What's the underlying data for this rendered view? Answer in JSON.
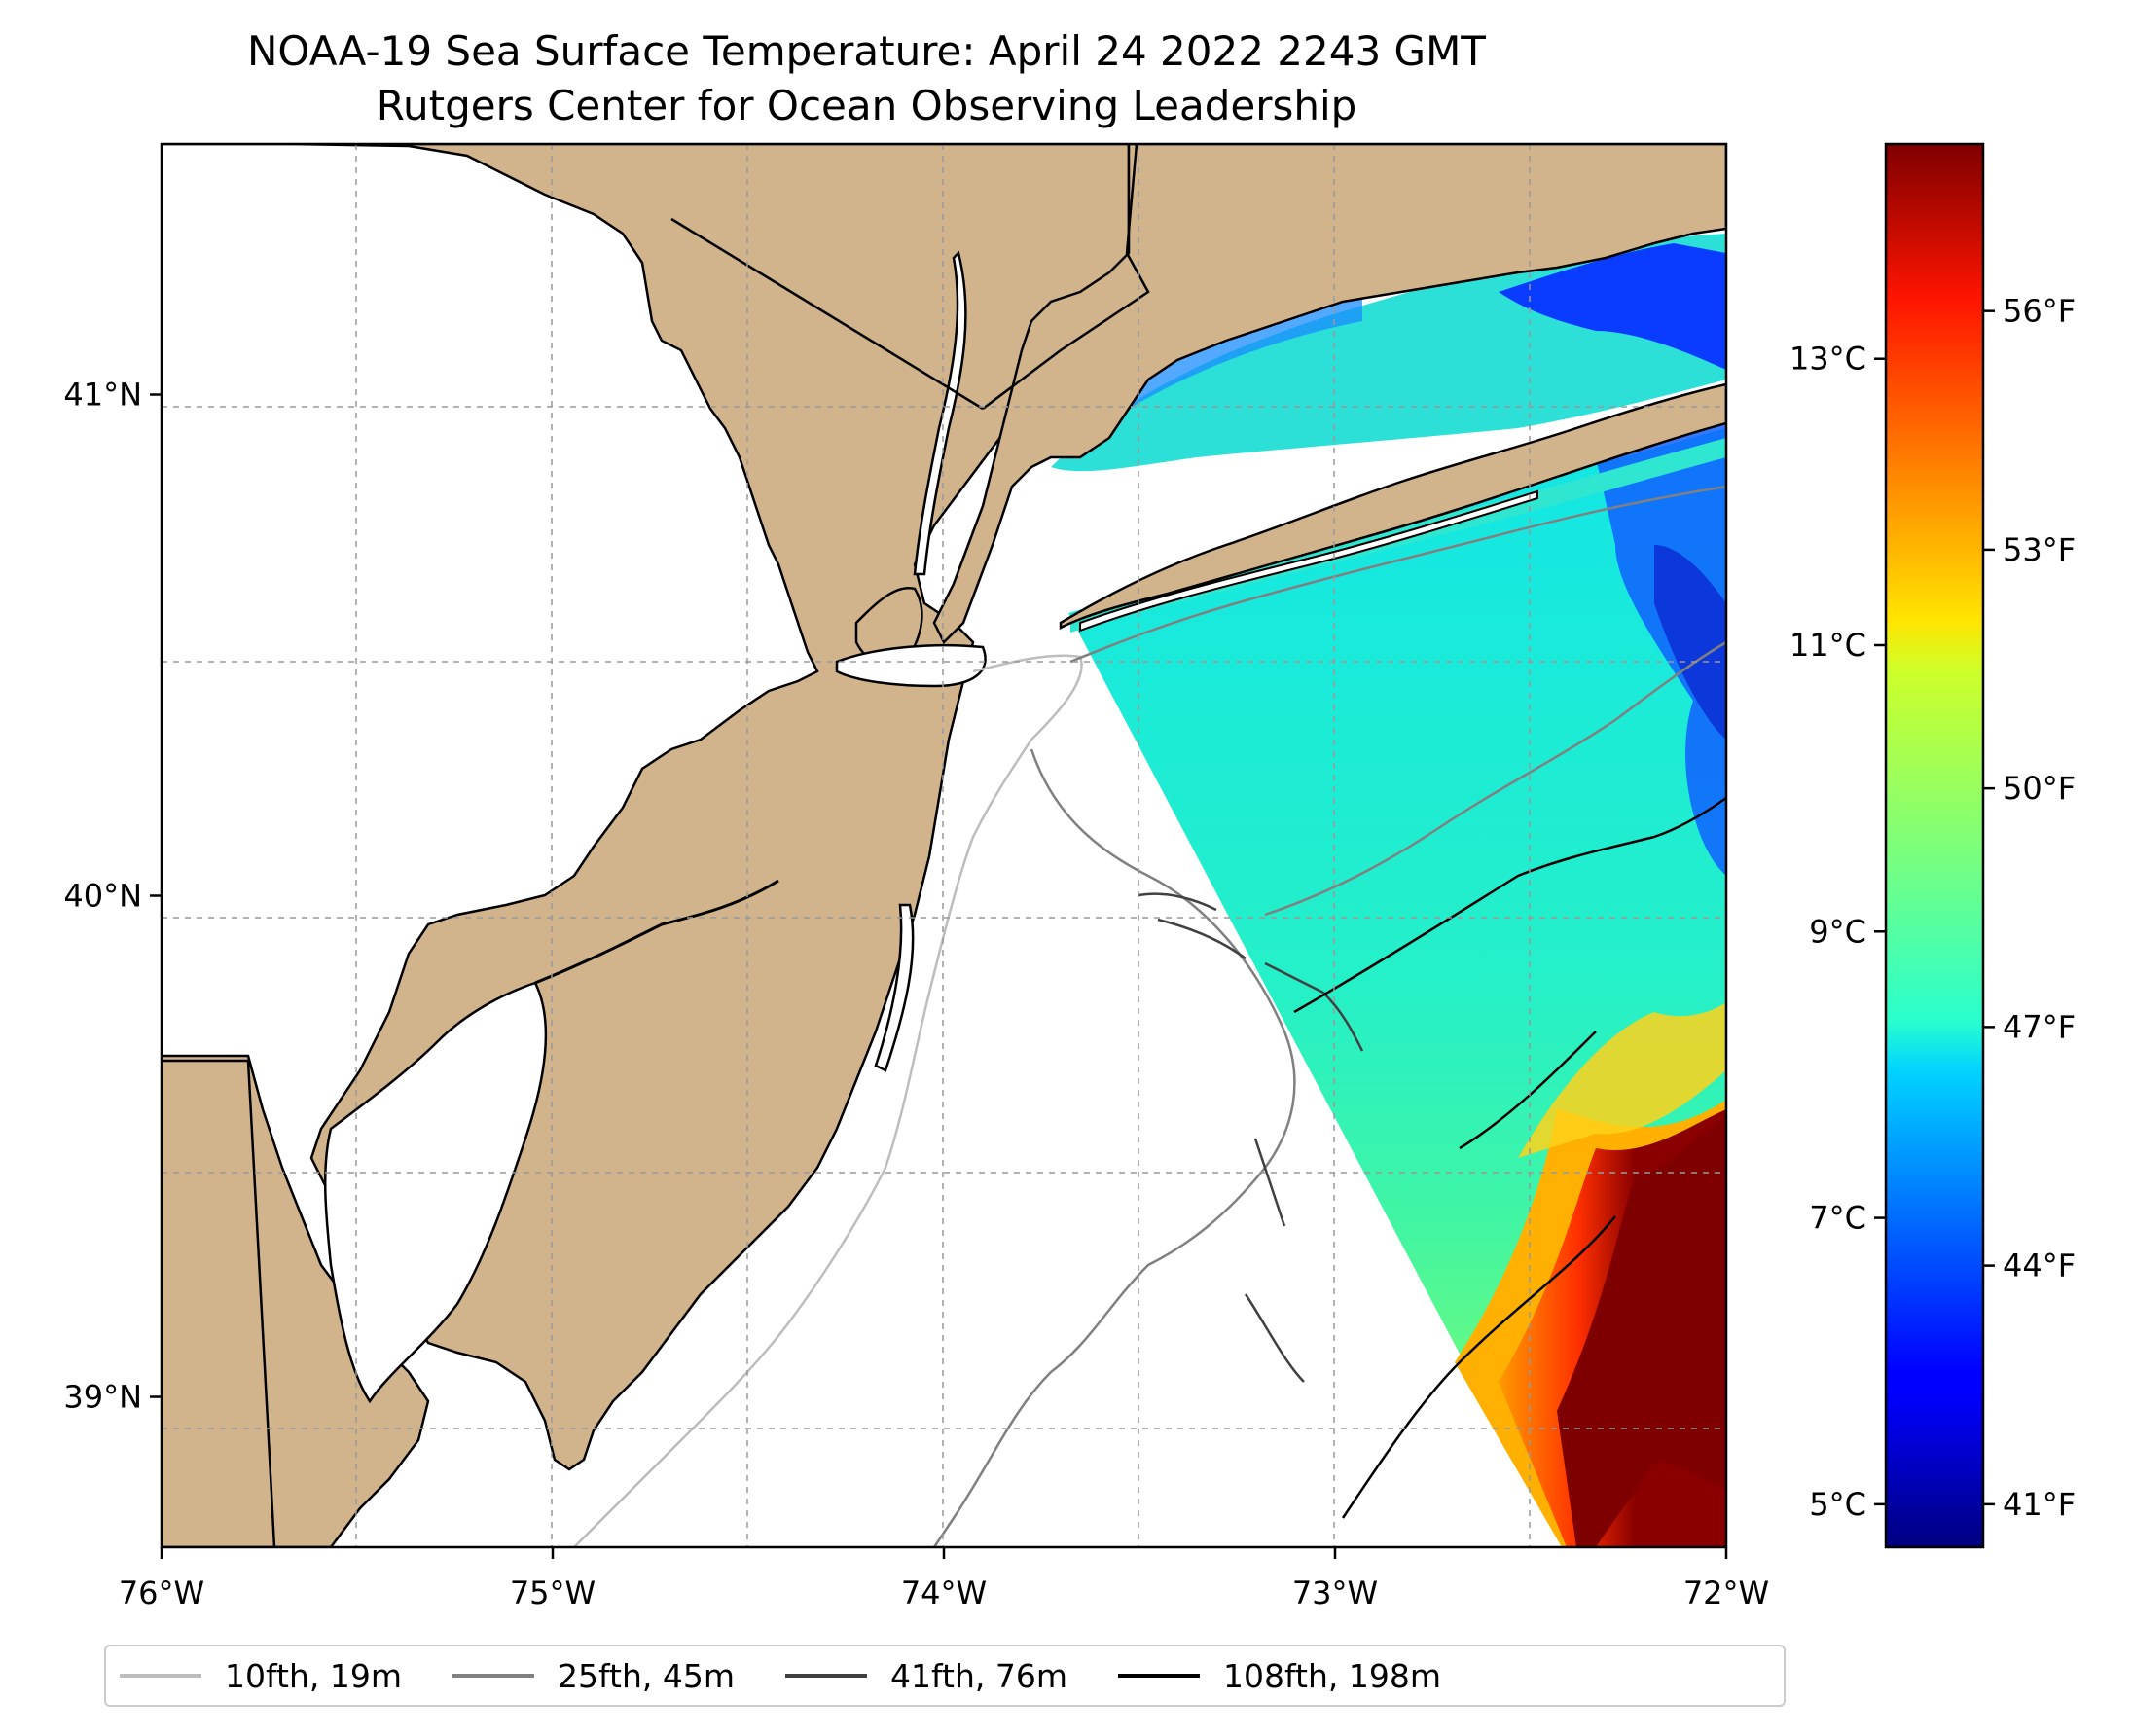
{
  "title": {
    "line1": "NOAA-19 Sea Surface Temperature: April 24 2022 2243 GMT",
    "line2": "Rutgers Center for Ocean Observing Leadership"
  },
  "map": {
    "lon_range": [
      -76,
      -72
    ],
    "lat_range": [
      38.7,
      41.5
    ],
    "x_ticks": [
      {
        "value": -76,
        "label": "76°W"
      },
      {
        "value": -75,
        "label": "75°W"
      },
      {
        "value": -74,
        "label": "74°W"
      },
      {
        "value": -73,
        "label": "73°W"
      },
      {
        "value": -72,
        "label": "72°W"
      }
    ],
    "y_ticks": [
      {
        "value": 41,
        "label": "41°N"
      },
      {
        "value": 40,
        "label": "40°N"
      },
      {
        "value": 39,
        "label": "39°N"
      }
    ],
    "land_color": "#d2b48c",
    "coast_color": "#000000",
    "grid": true
  },
  "colorbar": {
    "colormap": "jet",
    "celsius_ticks": [
      {
        "value": 5,
        "label": "5°C"
      },
      {
        "value": 7,
        "label": "7°C"
      },
      {
        "value": 9,
        "label": "9°C"
      },
      {
        "value": 11,
        "label": "11°C"
      },
      {
        "value": 13,
        "label": "13°C"
      }
    ],
    "fahrenheit_ticks": [
      {
        "value": 41,
        "label": "41°F"
      },
      {
        "value": 44,
        "label": "44°F"
      },
      {
        "value": 47,
        "label": "47°F"
      },
      {
        "value": 50,
        "label": "50°F"
      },
      {
        "value": 53,
        "label": "53°F"
      },
      {
        "value": 56,
        "label": "56°F"
      }
    ],
    "range_celsius": [
      4.7,
      14.5
    ]
  },
  "legend": [
    {
      "label": "10fth, 19m",
      "color": "#bdbdbd"
    },
    {
      "label": "25fth, 45m",
      "color": "#808080"
    },
    {
      "label": "41fth, 76m",
      "color": "#404040"
    },
    {
      "label": "108fth, 198m",
      "color": "#000000"
    }
  ]
}
